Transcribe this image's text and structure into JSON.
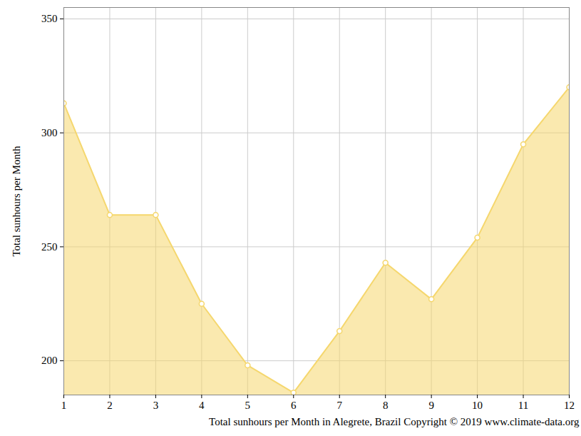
{
  "chart_data": {
    "type": "area",
    "xlabel": "Total sunhours per Month in Alegrete, Brazil Copyright © 2019 www.climate-data.org",
    "ylabel": "Total sunhours per Month",
    "x": [
      1,
      2,
      3,
      4,
      5,
      6,
      7,
      8,
      9,
      10,
      11,
      12
    ],
    "values": [
      313,
      264,
      264,
      225,
      198,
      186,
      213,
      243,
      227,
      254,
      295,
      320
    ],
    "color": "#f5d76e",
    "marker": "circle",
    "xlim": [
      1,
      12
    ],
    "xticks": [
      1,
      2,
      3,
      4,
      5,
      6,
      7,
      8,
      9,
      10,
      11,
      12
    ],
    "ylim": [
      185,
      355
    ],
    "yticks": [
      200,
      250,
      300,
      350
    ],
    "grid": true
  }
}
